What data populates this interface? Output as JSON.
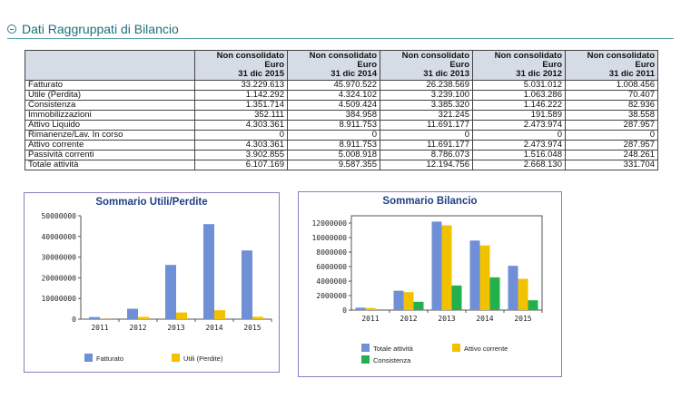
{
  "section": {
    "title": "Dati Raggruppati di Bilancio"
  },
  "table": {
    "headers": [
      {
        "l1": "Non consolidato",
        "l2": "Euro",
        "l3": "31 dic 2015"
      },
      {
        "l1": "Non consolidato",
        "l2": "Euro",
        "l3": "31 dic 2014"
      },
      {
        "l1": "Non consolidato",
        "l2": "Euro",
        "l3": "31 dic 2013"
      },
      {
        "l1": "Non consolidato",
        "l2": "Euro",
        "l3": "31 dic 2012"
      },
      {
        "l1": "Non consolidato",
        "l2": "Euro",
        "l3": "31 dic 2011"
      }
    ],
    "rows": [
      {
        "label": "Fatturato",
        "values": [
          "33.229.613",
          "45.970.522",
          "26.238.569",
          "5.031.012",
          "1.008.456"
        ]
      },
      {
        "label": "Utile (Perdita)",
        "values": [
          "1.142.292",
          "4.324.102",
          "3.239.100",
          "1.063.286",
          "70.407"
        ]
      },
      {
        "label": "Consistenza",
        "values": [
          "1.351.714",
          "4.509.424",
          "3.385.320",
          "1.146.222",
          "82.936"
        ]
      },
      {
        "label": "Immobilizzazioni",
        "values": [
          "352.111",
          "384.958",
          "321.245",
          "191.589",
          "38.558"
        ]
      },
      {
        "label": "Attivo Liquido",
        "values": [
          "4.303.361",
          "8.911.753",
          "11.691.177",
          "2.473.974",
          "287.957"
        ]
      },
      {
        "label": "Rimanenze/Lav. In corso",
        "values": [
          "0",
          "0",
          "0",
          "0",
          "0"
        ]
      },
      {
        "label": "Attivo corrente",
        "values": [
          "4.303.361",
          "8.911.753",
          "11.691.177",
          "2.473.974",
          "287.957"
        ]
      },
      {
        "label": "Passività correnti",
        "values": [
          "3.902.855",
          "5.008.918",
          "8.786.073",
          "1.516.048",
          "248.261"
        ]
      },
      {
        "label": "Totale attività",
        "values": [
          "6.107.169",
          "9.587.355",
          "12.194.756",
          "2.668.130",
          "331.704"
        ]
      }
    ]
  },
  "chart_data": [
    {
      "type": "bar",
      "title": "Sommario Utili/Perdite",
      "categories": [
        "2011",
        "2012",
        "2013",
        "2014",
        "2015"
      ],
      "ylim": [
        0,
        50000000
      ],
      "yticks": [
        0,
        10000000,
        20000000,
        30000000,
        40000000,
        50000000
      ],
      "grid": false,
      "legend_position": "bottom",
      "series": [
        {
          "name": "Fatturato",
          "color": "#6f8fd6",
          "values": [
            1008456,
            5031012,
            26238569,
            45970522,
            33229613
          ]
        },
        {
          "name": "Utili (Perdite)",
          "color": "#f2c200",
          "values": [
            70407,
            1063286,
            3239100,
            4324102,
            1142292
          ]
        }
      ]
    },
    {
      "type": "bar",
      "title": "Sommario Bilancio",
      "categories": [
        "2011",
        "2012",
        "2013",
        "2014",
        "2015"
      ],
      "ylim": [
        0,
        13000000
      ],
      "yticks": [
        0,
        2000000,
        4000000,
        6000000,
        8000000,
        10000000,
        12000000
      ],
      "grid": false,
      "legend_position": "bottom",
      "series": [
        {
          "name": "Totale attività",
          "color": "#6f8fd6",
          "values": [
            331704,
            2668130,
            12194756,
            9587355,
            6107169
          ]
        },
        {
          "name": "Attivo corrente",
          "color": "#f2c200",
          "values": [
            287957,
            2473974,
            11691177,
            8911753,
            4303361
          ]
        },
        {
          "name": "Consistenza",
          "color": "#22b14c",
          "values": [
            82936,
            1146222,
            3385320,
            4509424,
            1351714
          ]
        }
      ]
    }
  ]
}
